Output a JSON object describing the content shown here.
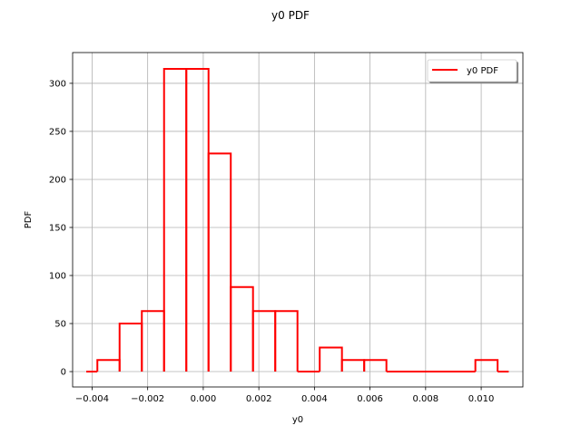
{
  "chart_data": {
    "type": "line",
    "title": "y0 PDF",
    "xlabel": "y0",
    "ylabel": "PDF",
    "xlim": [
      -0.0047,
      0.0115
    ],
    "ylim": [
      -16,
      332
    ],
    "grid": true,
    "legend_position": "top-right",
    "x_ticks": [
      -0.004,
      -0.002,
      0.0,
      0.002,
      0.004,
      0.006,
      0.008,
      0.01
    ],
    "x_tick_labels": [
      "−0.004",
      "−0.002",
      "0.000",
      "0.002",
      "0.004",
      "0.006",
      "0.008",
      "0.010"
    ],
    "y_ticks": [
      0,
      50,
      100,
      150,
      200,
      250,
      300
    ],
    "y_tick_labels": [
      "0",
      "50",
      "100",
      "150",
      "200",
      "250",
      "300"
    ],
    "series": [
      {
        "name": "y0 PDF",
        "color": "#ff0000",
        "bins": [
          {
            "x0": -0.00421,
            "x1": -0.00381,
            "y": 0
          },
          {
            "x0": -0.00381,
            "x1": -0.00301,
            "y": 12
          },
          {
            "x0": -0.00301,
            "x1": -0.00221,
            "y": 50
          },
          {
            "x0": -0.00221,
            "x1": -0.00141,
            "y": 63
          },
          {
            "x0": -0.00141,
            "x1": -0.00061,
            "y": 315
          },
          {
            "x0": -0.00061,
            "x1": 0.00019,
            "y": 315
          },
          {
            "x0": 0.00019,
            "x1": 0.00099,
            "y": 227
          },
          {
            "x0": 0.00099,
            "x1": 0.00179,
            "y": 88
          },
          {
            "x0": 0.00179,
            "x1": 0.00259,
            "y": 63
          },
          {
            "x0": 0.00259,
            "x1": 0.00339,
            "y": 63
          },
          {
            "x0": 0.00339,
            "x1": 0.00419,
            "y": 0
          },
          {
            "x0": 0.00419,
            "x1": 0.00499,
            "y": 25
          },
          {
            "x0": 0.00499,
            "x1": 0.00579,
            "y": 12
          },
          {
            "x0": 0.00579,
            "x1": 0.00659,
            "y": 12
          },
          {
            "x0": 0.00659,
            "x1": 0.00979,
            "y": 0
          },
          {
            "x0": 0.00979,
            "x1": 0.01059,
            "y": 12
          },
          {
            "x0": 0.01059,
            "x1": 0.01099,
            "y": 0
          }
        ]
      }
    ]
  }
}
